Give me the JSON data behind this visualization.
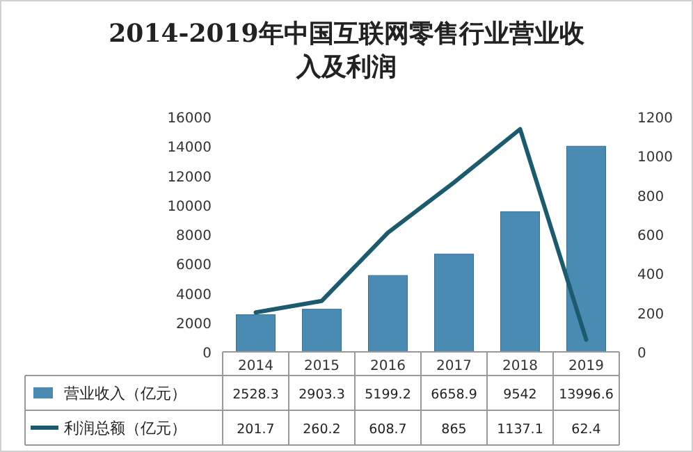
{
  "chart_data": {
    "type": "bar",
    "title": "2014-2019年中国互联网零售行业营业收入及利润",
    "categories": [
      "2014",
      "2015",
      "2016",
      "2017",
      "2018",
      "2019"
    ],
    "series": [
      {
        "name": "营业收入（亿元）",
        "color": "#4a8bb3",
        "values": [
          2528.3,
          2903.3,
          5199.2,
          6658.9,
          9542,
          13996.6
        ]
      },
      {
        "name": "利润总额（亿元）",
        "type": "line",
        "axis": "y2",
        "color": "#1c5a6e",
        "values": [
          201.7,
          260.2,
          608.7,
          865,
          1137.1,
          62.4
        ]
      }
    ],
    "ylim": [
      0,
      16000
    ],
    "yticks": [
      0,
      2000,
      4000,
      6000,
      8000,
      10000,
      12000,
      14000,
      16000
    ],
    "y2lim": [
      0,
      1200
    ],
    "y2ticks": [
      0,
      200,
      400,
      600,
      800,
      1000,
      1200
    ],
    "data_labels": true,
    "legend": "bottom",
    "grid": false
  }
}
